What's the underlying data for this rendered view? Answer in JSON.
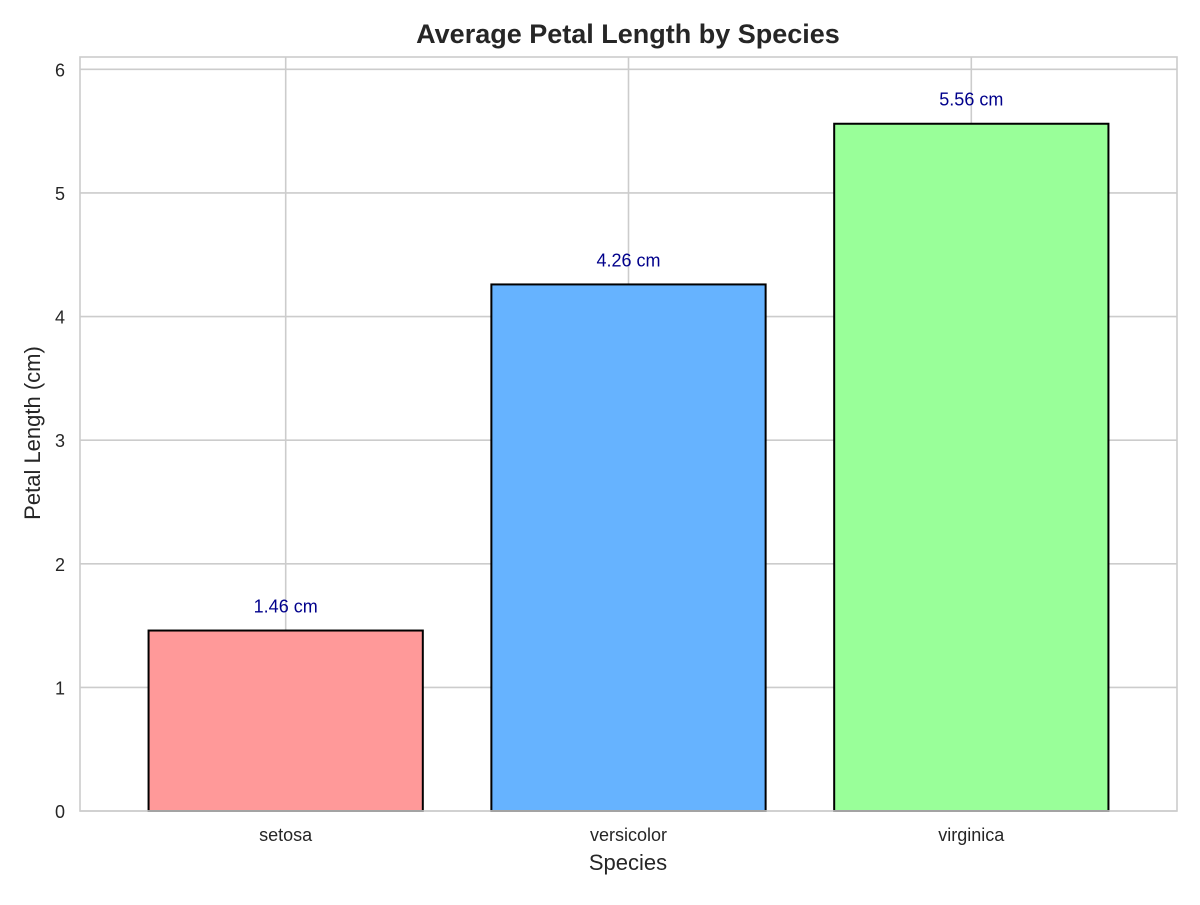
{
  "chart_data": {
    "type": "bar",
    "title": "Average Petal Length by Species",
    "xlabel": "Species",
    "ylabel": "Petal Length (cm)",
    "categories": [
      "setosa",
      "versicolor",
      "virginica"
    ],
    "values": [
      1.46,
      4.26,
      5.56
    ],
    "value_labels": [
      "1.46 cm",
      "4.26 cm",
      "5.56 cm"
    ],
    "bar_colors": [
      "#ff9999",
      "#66b3ff",
      "#99ff99"
    ],
    "bar_edge_color": "#000000",
    "value_label_color": "#00008b",
    "ylim": [
      0,
      6.1
    ],
    "yticks": [
      0,
      1,
      2,
      3,
      4,
      5,
      6
    ],
    "grid": true,
    "grid_color": "#cccccc",
    "legend": "none"
  }
}
